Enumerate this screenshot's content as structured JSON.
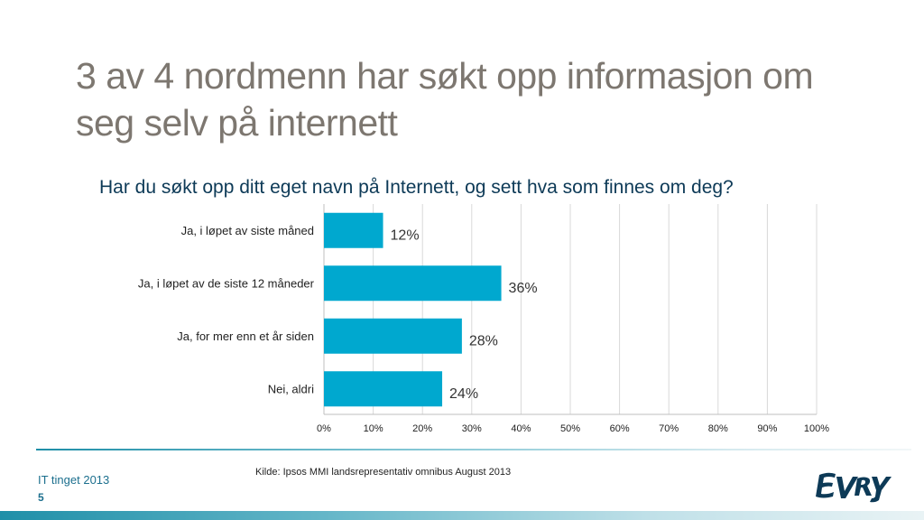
{
  "slide": {
    "title": "3 av 4 nordmenn har søkt opp informasjon om seg selv på internett"
  },
  "footer": {
    "source": "Kilde: Ipsos MMI landsrepresentativ omnibus August 2013",
    "event": "IT tinget 2013",
    "page_number": "5",
    "logo_text": "EVRY"
  },
  "colors": {
    "bar": "#00a8cf",
    "title": "#7d7770",
    "question": "#0d3a57",
    "grid": "#d9d9d9"
  },
  "chart_data": {
    "type": "bar",
    "orientation": "horizontal",
    "title": "Har du søkt opp ditt eget navn på Internett, og sett hva som finnes om deg?",
    "categories": [
      "Ja, i løpet av siste måned",
      "Ja, i løpet av de siste 12 måneder",
      "Ja, for mer enn et år siden",
      "Nei, aldri"
    ],
    "values": [
      12,
      36,
      28,
      24
    ],
    "data_labels": [
      "12%",
      "36%",
      "28%",
      "24%"
    ],
    "xlim": [
      0,
      100
    ],
    "xticks": [
      0,
      10,
      20,
      30,
      40,
      50,
      60,
      70,
      80,
      90,
      100
    ],
    "xtick_labels": [
      "0%",
      "10%",
      "20%",
      "30%",
      "40%",
      "50%",
      "60%",
      "70%",
      "80%",
      "90%",
      "100%"
    ],
    "xlabel": "",
    "ylabel": "",
    "grid": true,
    "legend": false
  }
}
